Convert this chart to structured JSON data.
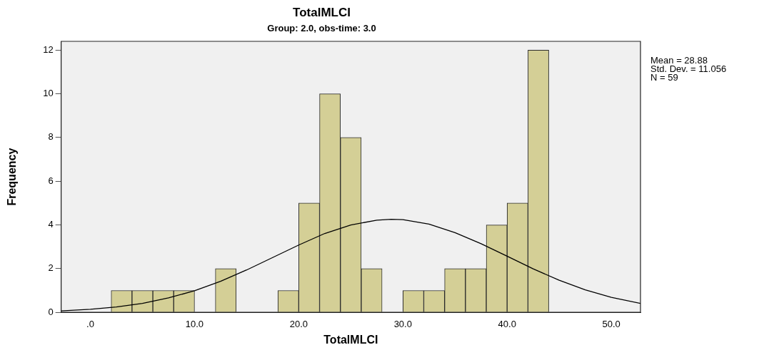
{
  "chart_data": {
    "type": "histogram",
    "title": "TotalMLCI",
    "subtitle": "Group: 2.0, obs-time: 3.0",
    "xlabel": "TotalMLCI",
    "ylabel": "Frequency",
    "annotations": [
      "Mean = 28.88",
      "Std. Dev. = 11.056",
      "N = 59"
    ],
    "xlim": [
      -2.8,
      52.8
    ],
    "xticks": [
      {
        "value": 0,
        "label": ".0"
      },
      {
        "value": 10,
        "label": "10.0"
      },
      {
        "value": 20,
        "label": "20.0"
      },
      {
        "value": 30,
        "label": "30.0"
      },
      {
        "value": 40,
        "label": "40.0"
      },
      {
        "value": 50,
        "label": "50.0"
      }
    ],
    "ylim": [
      0,
      12.4
    ],
    "yticks": [
      0,
      2,
      4,
      6,
      8,
      10,
      12
    ],
    "legend": false,
    "color": "#d4cf96",
    "bins": [
      2,
      4,
      6,
      8,
      10,
      12,
      14,
      16,
      18,
      20,
      22,
      24,
      26,
      28,
      30,
      32,
      34,
      36,
      38,
      40,
      42,
      44
    ],
    "values": [
      1,
      1,
      1,
      1,
      0,
      2,
      0,
      0,
      1,
      5,
      10,
      8,
      2,
      0,
      1,
      1,
      2,
      2,
      4,
      5,
      12
    ],
    "series": [
      {
        "type": "line",
        "color": "#000000",
        "x": [
          -2.8,
          0,
          2.5,
          5,
          7.5,
          10,
          12.5,
          15,
          17.5,
          20,
          22.5,
          25,
          27.5,
          28.88,
          30,
          32.5,
          35,
          37.5,
          40,
          42.5,
          45,
          47.5,
          50,
          52.8
        ],
        "values": [
          0.07,
          0.14,
          0.25,
          0.41,
          0.66,
          0.99,
          1.42,
          1.94,
          2.51,
          3.08,
          3.61,
          4.0,
          4.22,
          4.26,
          4.24,
          4.04,
          3.65,
          3.14,
          2.57,
          1.99,
          1.47,
          1.03,
          0.69,
          0.41
        ]
      }
    ]
  }
}
